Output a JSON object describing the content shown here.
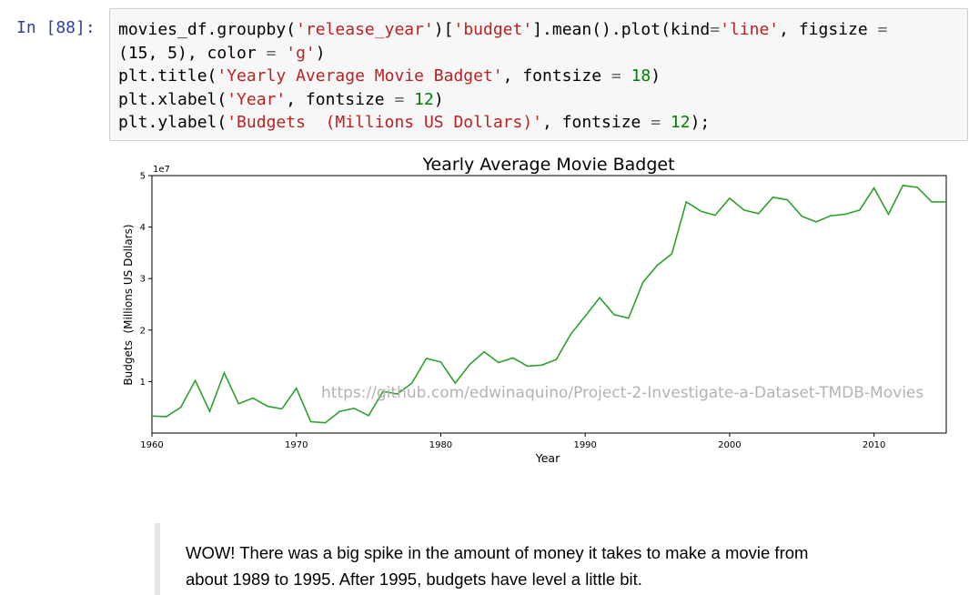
{
  "cell": {
    "prompt": "In [88]:",
    "code": {
      "line1": {
        "a": "movies_df.groupby(",
        "s1": "'release_year'",
        "b": ")[",
        "s2": "'budget'",
        "c": "].mean().plot(kind",
        "eq": "=",
        "s3": "'line'",
        "d": ", figsize ",
        "eq2": "="
      },
      "line2": {
        "a": "(15, 5), color ",
        "eq": "=",
        "s1": "'g'",
        "b": ")"
      },
      "line3": {
        "a": "plt.title(",
        "s1": "'Yearly Average Movie Badget'",
        "b": ", fontsize ",
        "eq": "=",
        "num": "18",
        "c": ")"
      },
      "line4": {
        "a": "plt.xlabel(",
        "s1": "'Year'",
        "b": ", fontsize ",
        "eq": "=",
        "num": "12",
        "c": ")"
      },
      "line5": {
        "a": "plt.ylabel(",
        "s1": "'Budgets  (Millions US Dollars)'",
        "b": ", fontsize ",
        "eq": "=",
        "num": "12",
        "c": ");"
      }
    }
  },
  "chart_data": {
    "type": "line",
    "title": "Yearly Average Movie Badget",
    "xlabel": "Year",
    "ylabel": "Budgets  (Millions US Dollars)",
    "y_offset_label": "1e7",
    "xlim": [
      1960,
      2015
    ],
    "ylim": [
      0,
      5
    ],
    "xticks": [
      1960,
      1970,
      1980,
      1990,
      2000,
      2010
    ],
    "yticks": [
      1,
      2,
      3,
      4,
      5
    ],
    "line_color": "#2ca02c",
    "grid": false,
    "legend": "none",
    "watermark": "https://github.com/edwinaquino/Project-2-Investigate-a-Dataset-TMDB-Movies",
    "x": [
      1960,
      1961,
      1962,
      1963,
      1964,
      1965,
      1966,
      1967,
      1968,
      1969,
      1970,
      1971,
      1972,
      1973,
      1974,
      1975,
      1976,
      1977,
      1978,
      1979,
      1980,
      1981,
      1982,
      1983,
      1984,
      1985,
      1986,
      1987,
      1988,
      1989,
      1990,
      1991,
      1992,
      1993,
      1994,
      1995,
      1996,
      1997,
      1998,
      1999,
      2000,
      2001,
      2002,
      2003,
      2004,
      2005,
      2006,
      2007,
      2008,
      2009,
      2010,
      2011,
      2012,
      2013,
      2014,
      2015
    ],
    "values": [
      0.33,
      0.32,
      0.5,
      1.02,
      0.42,
      1.17,
      0.57,
      0.68,
      0.52,
      0.47,
      0.87,
      0.22,
      0.2,
      0.42,
      0.48,
      0.34,
      0.81,
      0.76,
      0.97,
      1.45,
      1.38,
      0.97,
      1.33,
      1.58,
      1.37,
      1.46,
      1.3,
      1.32,
      1.43,
      1.92,
      2.27,
      2.63,
      2.3,
      2.23,
      2.93,
      3.26,
      3.48,
      4.49,
      4.31,
      4.23,
      4.56,
      4.33,
      4.26,
      4.58,
      4.53,
      4.21,
      4.1,
      4.22,
      4.25,
      4.33,
      4.76,
      4.25,
      4.81,
      4.77,
      4.49,
      4.49
    ]
  },
  "markdown": {
    "line1": "WOW! There was a big spike in the amount of money it takes to make a movie from",
    "line2": "about 1989 to 1995. After 1995, budgets have level a little bit."
  }
}
